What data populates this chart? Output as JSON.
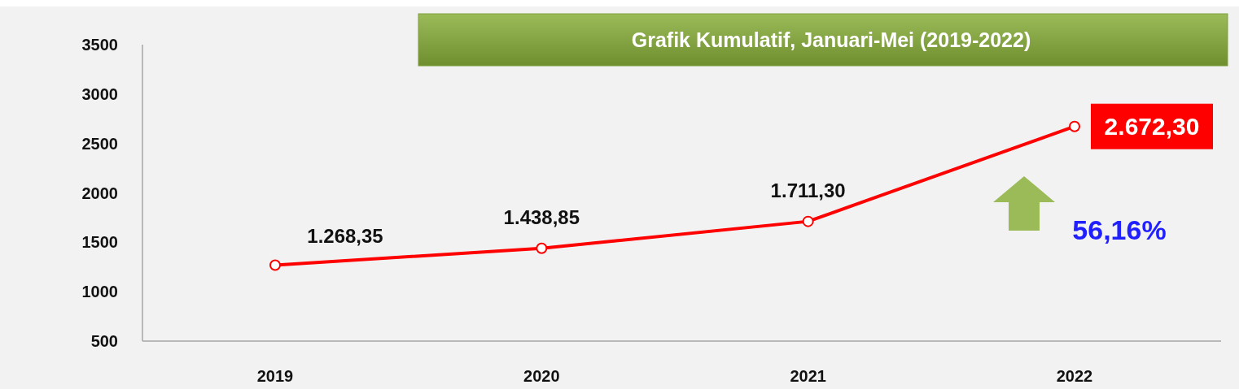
{
  "chart_data": {
    "type": "line",
    "title": "Grafik Kumulatif, Januari-Mei (2019-2022)",
    "categories": [
      "2019",
      "2020",
      "2021",
      "2022"
    ],
    "series": [
      {
        "color": "#ff0000",
        "values": [
          1268.35,
          1438.85,
          1711.3,
          2672.3
        ],
        "value_labels": [
          "1.268,35",
          "1.438,85",
          "1.711,30",
          "2.672,30"
        ]
      }
    ],
    "ylim": [
      500,
      3500
    ],
    "yticks": [
      500,
      1000,
      1500,
      2000,
      2500,
      3000,
      3500
    ],
    "grid": false,
    "marker": "circle",
    "line_style": "solid",
    "annotations": [
      "56,16%"
    ]
  }
}
